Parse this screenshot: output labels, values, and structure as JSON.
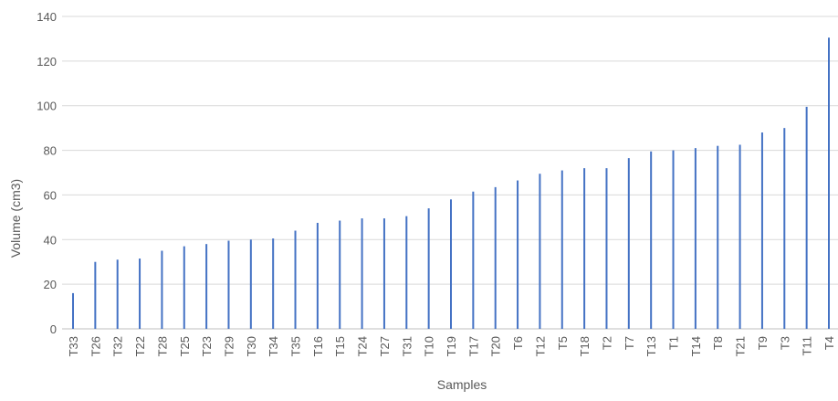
{
  "chart_data": {
    "type": "bar",
    "xlabel": "Samples",
    "ylabel": "Volume (cm3)",
    "ylim": [
      0,
      140
    ],
    "yticks": [
      0,
      20,
      40,
      60,
      80,
      100,
      120,
      140
    ],
    "grid": true,
    "legend": "none",
    "bar_color": "#4472c4",
    "categories": [
      "T33",
      "T26",
      "T32",
      "T22",
      "T28",
      "T25",
      "T23",
      "T29",
      "T30",
      "T34",
      "T35",
      "T16",
      "T15",
      "T24",
      "T27",
      "T31",
      "T10",
      "T19",
      "T17",
      "T20",
      "T6",
      "T12",
      "T5",
      "T18",
      "T2",
      "T7",
      "T13",
      "T1",
      "T14",
      "T8",
      "T21",
      "T9",
      "T3",
      "T11",
      "T4"
    ],
    "values": [
      16,
      30,
      31,
      31.5,
      35,
      37,
      38,
      39.5,
      40,
      40.5,
      44,
      47.5,
      48.5,
      49.5,
      49.5,
      50.5,
      54,
      58,
      61.5,
      63.5,
      66.5,
      69.5,
      71,
      72,
      72,
      76.5,
      79.5,
      80,
      81,
      82,
      82.5,
      88,
      90,
      99.5,
      130.5
    ]
  }
}
